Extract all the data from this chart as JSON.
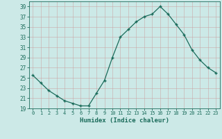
{
  "x": [
    0,
    1,
    2,
    3,
    4,
    5,
    6,
    7,
    8,
    9,
    10,
    11,
    12,
    13,
    14,
    15,
    16,
    17,
    18,
    19,
    20,
    21,
    22,
    23
  ],
  "y": [
    25.5,
    24.0,
    22.5,
    21.5,
    20.5,
    20.0,
    19.5,
    19.5,
    22.0,
    24.5,
    29.0,
    33.0,
    34.5,
    36.0,
    37.0,
    37.5,
    39.0,
    37.5,
    35.5,
    33.5,
    30.5,
    28.5,
    27.0,
    26.0
  ],
  "ylim": [
    19,
    40
  ],
  "yticks": [
    19,
    21,
    23,
    25,
    27,
    29,
    31,
    33,
    35,
    37,
    39
  ],
  "xlabel": "Humidex (Indice chaleur)",
  "line_color": "#1a6b5a",
  "marker": "+",
  "bg_color": "#cce9e7",
  "grid_color_major": "#b8d8d5",
  "grid_color_minor": "#d4eeec",
  "tick_label_color": "#1a6b5a",
  "xlabel_color": "#1a6b5a",
  "font_family": "monospace"
}
